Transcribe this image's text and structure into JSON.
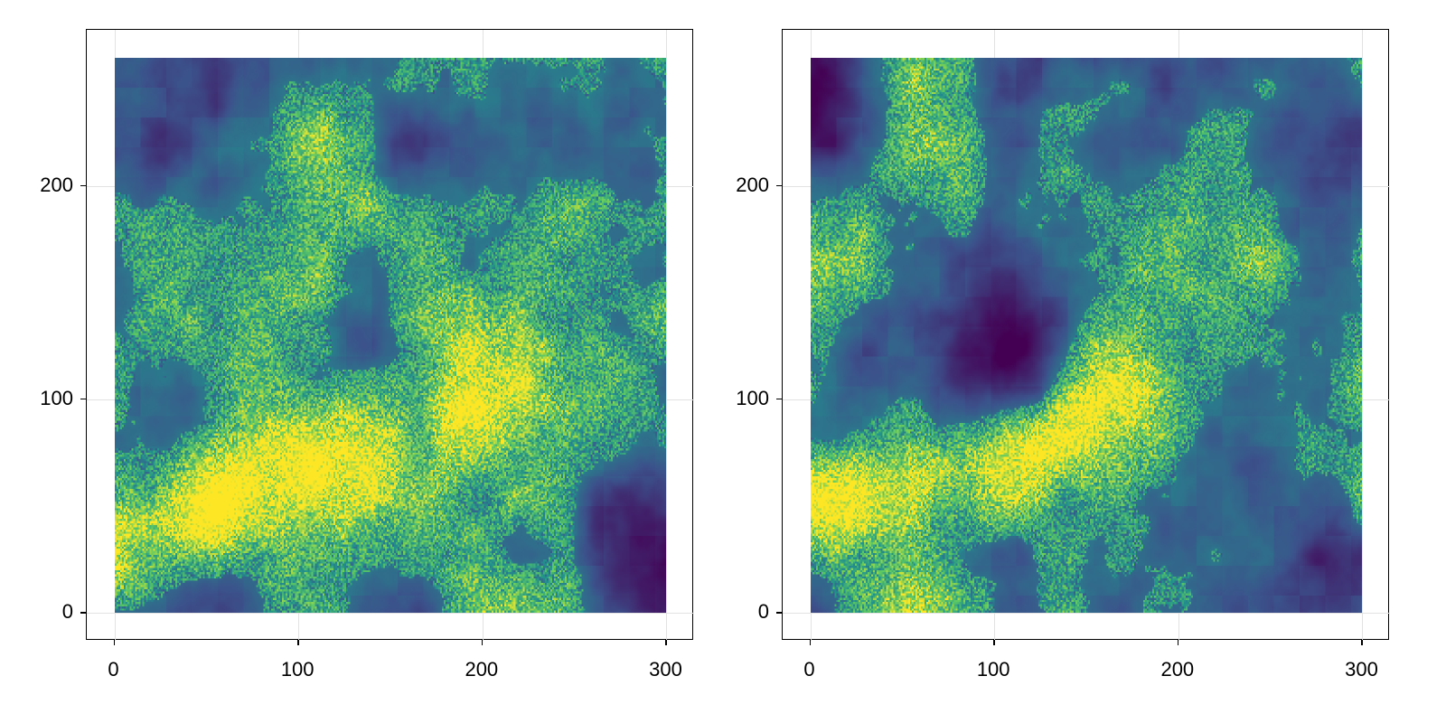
{
  "chart_data": [
    {
      "type": "heatmap",
      "title": "",
      "xlabel": "",
      "ylabel": "",
      "xlim": [
        -15,
        315
      ],
      "ylim": [
        -13,
        273
      ],
      "data_extent": {
        "x": [
          0,
          300
        ],
        "y": [
          0,
          260
        ]
      },
      "xticks": [
        "0",
        "100",
        "200",
        "300"
      ],
      "yticks": [
        "0",
        "100",
        "200"
      ],
      "xtick_values": [
        0,
        100,
        200,
        300
      ],
      "ytick_values": [
        0,
        100,
        200
      ],
      "grid": true,
      "colormap": "viridis",
      "colors": [
        "#440154",
        "#3b528b",
        "#21918c",
        "#5ec962",
        "#fde725"
      ],
      "seed": 7,
      "features": [
        {
          "kind": "ridge",
          "from": [
            5,
            40
          ],
          "to": [
            180,
            105
          ],
          "strength": 1.0
        },
        {
          "kind": "low",
          "center": [
            45,
            90
          ],
          "strength": 0.9
        },
        {
          "kind": "low",
          "center": [
            285,
            20
          ],
          "strength": 0.9
        },
        {
          "kind": "low",
          "center": [
            135,
            110
          ],
          "strength": 0.7
        }
      ]
    },
    {
      "type": "heatmap",
      "title": "",
      "xlabel": "",
      "ylabel": "",
      "xlim": [
        -15,
        315
      ],
      "ylim": [
        -13,
        273
      ],
      "data_extent": {
        "x": [
          0,
          300
        ],
        "y": [
          0,
          260
        ]
      },
      "xticks": [
        "0",
        "100",
        "200",
        "300"
      ],
      "yticks": [
        "0",
        "100",
        "200"
      ],
      "xtick_values": [
        0,
        100,
        200,
        300
      ],
      "ytick_values": [
        0,
        100,
        200
      ],
      "grid": true,
      "colormap": "viridis",
      "colors": [
        "#440154",
        "#3b528b",
        "#21918c",
        "#5ec962",
        "#fde725"
      ],
      "seed": 13,
      "features": [
        {
          "kind": "ridge",
          "from": [
            5,
            50
          ],
          "to": [
            160,
            90
          ],
          "strength": 1.0
        },
        {
          "kind": "low",
          "center": [
            105,
            120
          ],
          "strength": 0.9
        },
        {
          "kind": "low",
          "center": [
            285,
            20
          ],
          "strength": 0.9
        },
        {
          "kind": "low",
          "center": [
            10,
            240
          ],
          "strength": 0.7
        }
      ]
    }
  ]
}
